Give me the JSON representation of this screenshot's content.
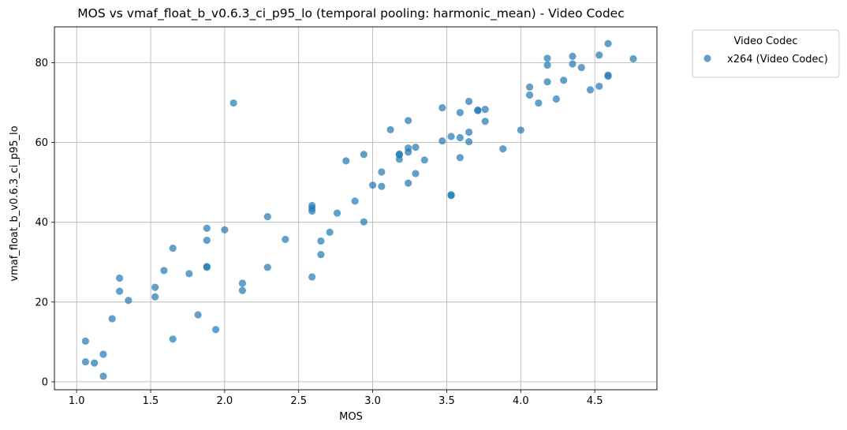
{
  "chart_data": {
    "type": "scatter",
    "title": "MOS vs vmaf_float_b_v0.6.3_ci_p95_lo (temporal pooling: harmonic_mean) - Video Codec",
    "xlabel": "MOS",
    "ylabel": "vmaf_float_b_v0.6.3_ci_p95_lo",
    "xlim": [
      0.85,
      4.92
    ],
    "ylim": [
      -2,
      89
    ],
    "x_ticks": [
      1.0,
      1.5,
      2.0,
      2.5,
      3.0,
      3.5,
      4.0,
      4.5
    ],
    "x_tick_labels": [
      "1.0",
      "1.5",
      "2.0",
      "2.5",
      "3.0",
      "3.5",
      "4.0",
      "4.5"
    ],
    "y_ticks": [
      0,
      20,
      40,
      60,
      80
    ],
    "y_tick_labels": [
      "0",
      "20",
      "40",
      "60",
      "80"
    ],
    "grid": true,
    "legend": {
      "title": "Video Codec",
      "position": "outside-top-right"
    },
    "series": [
      {
        "name": "x264 (Video Codec)",
        "color": "#1f77b4",
        "points": [
          [
            1.06,
            10.2
          ],
          [
            1.06,
            5.0
          ],
          [
            1.12,
            4.7
          ],
          [
            1.18,
            6.9
          ],
          [
            1.18,
            1.4
          ],
          [
            1.24,
            15.8
          ],
          [
            1.29,
            26.0
          ],
          [
            1.29,
            22.7
          ],
          [
            1.35,
            20.4
          ],
          [
            1.53,
            23.7
          ],
          [
            1.53,
            21.3
          ],
          [
            1.59,
            27.9
          ],
          [
            1.65,
            33.5
          ],
          [
            1.65,
            10.7
          ],
          [
            1.76,
            27.1
          ],
          [
            1.82,
            16.8
          ],
          [
            1.88,
            38.5
          ],
          [
            1.88,
            35.5
          ],
          [
            1.88,
            28.7
          ],
          [
            1.88,
            28.9
          ],
          [
            1.94,
            13.1
          ],
          [
            2.0,
            38.1
          ],
          [
            2.06,
            69.9
          ],
          [
            2.12,
            24.7
          ],
          [
            2.12,
            22.9
          ],
          [
            2.29,
            41.4
          ],
          [
            2.29,
            28.7
          ],
          [
            2.41,
            35.7
          ],
          [
            2.59,
            44.2
          ],
          [
            2.59,
            43.5
          ],
          [
            2.59,
            42.8
          ],
          [
            2.59,
            26.3
          ],
          [
            2.65,
            35.3
          ],
          [
            2.65,
            31.9
          ],
          [
            2.71,
            37.5
          ],
          [
            2.76,
            42.3
          ],
          [
            2.82,
            55.4
          ],
          [
            2.88,
            45.3
          ],
          [
            2.94,
            57.0
          ],
          [
            2.94,
            40.1
          ],
          [
            3.0,
            49.3
          ],
          [
            3.06,
            52.6
          ],
          [
            3.06,
            49.0
          ],
          [
            3.12,
            63.2
          ],
          [
            3.18,
            57.1
          ],
          [
            3.18,
            56.9
          ],
          [
            3.18,
            55.8
          ],
          [
            3.24,
            65.5
          ],
          [
            3.24,
            58.6
          ],
          [
            3.24,
            57.6
          ],
          [
            3.24,
            49.8
          ],
          [
            3.29,
            58.8
          ],
          [
            3.29,
            52.2
          ],
          [
            3.35,
            55.6
          ],
          [
            3.47,
            68.7
          ],
          [
            3.47,
            60.4
          ],
          [
            3.53,
            61.5
          ],
          [
            3.53,
            46.9
          ],
          [
            3.53,
            46.7
          ],
          [
            3.59,
            67.5
          ],
          [
            3.59,
            61.2
          ],
          [
            3.59,
            56.2
          ],
          [
            3.65,
            70.3
          ],
          [
            3.65,
            62.6
          ],
          [
            3.65,
            60.2
          ],
          [
            3.71,
            68.1
          ],
          [
            3.71,
            68.0
          ],
          [
            3.76,
            68.3
          ],
          [
            3.76,
            65.3
          ],
          [
            3.88,
            58.4
          ],
          [
            4.0,
            63.1
          ],
          [
            4.06,
            73.9
          ],
          [
            4.06,
            71.9
          ],
          [
            4.12,
            69.9
          ],
          [
            4.18,
            81.1
          ],
          [
            4.18,
            79.4
          ],
          [
            4.18,
            75.2
          ],
          [
            4.24,
            70.9
          ],
          [
            4.29,
            75.6
          ],
          [
            4.35,
            81.6
          ],
          [
            4.35,
            79.7
          ],
          [
            4.41,
            78.8
          ],
          [
            4.47,
            73.2
          ],
          [
            4.53,
            81.9
          ],
          [
            4.53,
            74.1
          ],
          [
            4.59,
            84.8
          ],
          [
            4.59,
            76.9
          ],
          [
            4.59,
            76.6
          ],
          [
            4.76,
            81.0
          ]
        ]
      }
    ]
  }
}
